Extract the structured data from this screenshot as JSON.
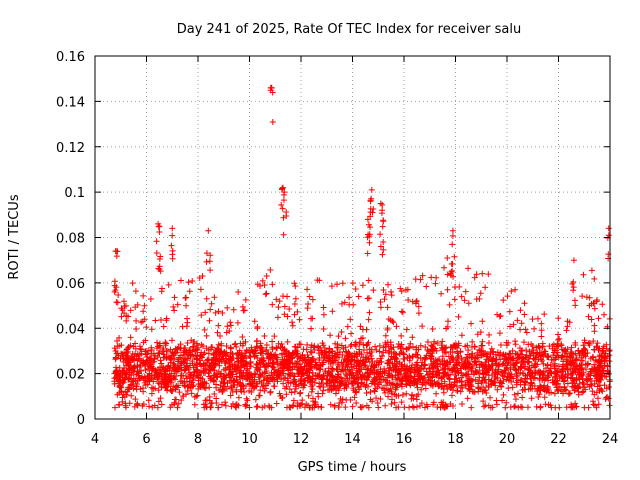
{
  "chart_data": {
    "type": "scatter",
    "title": "Day 241 of 2025, Rate Of TEC Index for receiver salu",
    "xlabel": "GPS time / hours",
    "ylabel": "ROTI / TECUs",
    "xlim": [
      4,
      24
    ],
    "ylim": [
      0,
      0.16
    ],
    "xticks": [
      4,
      6,
      8,
      10,
      12,
      14,
      16,
      18,
      20,
      22,
      24
    ],
    "xtick_labels": [
      "4",
      "6",
      "8",
      "10",
      "12",
      "14",
      "16",
      "18",
      "20",
      "22",
      "24"
    ],
    "yticks": [
      0,
      0.02,
      0.04,
      0.06,
      0.08,
      0.1,
      0.12,
      0.14,
      0.16
    ],
    "ytick_labels": [
      "0",
      "0.02",
      "0.04",
      "0.06",
      "0.08",
      "0.1",
      "0.12",
      "0.14",
      "0.16"
    ],
    "grid": true,
    "marker": "+",
    "color": "#ff0000",
    "data_start_hour": 4.75,
    "data_end_hour": 24.0,
    "typical_band": [
      0.01,
      0.035
    ],
    "series": [
      {
        "name": "ROTI",
        "notable_points": [
          {
            "x": 4.8,
            "y": 0.074
          },
          {
            "x": 6.45,
            "y": 0.086
          },
          {
            "x": 6.5,
            "y": 0.085
          },
          {
            "x": 7.0,
            "y": 0.084
          },
          {
            "x": 8.4,
            "y": 0.083
          },
          {
            "x": 10.85,
            "y": 0.146
          },
          {
            "x": 11.3,
            "y": 0.102
          },
          {
            "x": 11.35,
            "y": 0.1
          },
          {
            "x": 14.6,
            "y": 0.088
          },
          {
            "x": 14.75,
            "y": 0.101
          },
          {
            "x": 14.7,
            "y": 0.096
          },
          {
            "x": 15.1,
            "y": 0.095
          },
          {
            "x": 15.15,
            "y": 0.092
          },
          {
            "x": 17.9,
            "y": 0.083
          },
          {
            "x": 22.6,
            "y": 0.07
          },
          {
            "x": 23.95,
            "y": 0.084
          }
        ],
        "envelope_hourly": [
          {
            "x": 5,
            "y": 0.06
          },
          {
            "x": 6,
            "y": 0.055
          },
          {
            "x": 7,
            "y": 0.06
          },
          {
            "x": 8,
            "y": 0.065
          },
          {
            "x": 9,
            "y": 0.045
          },
          {
            "x": 10,
            "y": 0.06
          },
          {
            "x": 11,
            "y": 0.065
          },
          {
            "x": 12,
            "y": 0.055
          },
          {
            "x": 13,
            "y": 0.062
          },
          {
            "x": 14,
            "y": 0.06
          },
          {
            "x": 15,
            "y": 0.06
          },
          {
            "x": 16,
            "y": 0.055
          },
          {
            "x": 17,
            "y": 0.065
          },
          {
            "x": 18,
            "y": 0.07
          },
          {
            "x": 19,
            "y": 0.062
          },
          {
            "x": 20,
            "y": 0.06
          },
          {
            "x": 21,
            "y": 0.045
          },
          {
            "x": 22,
            "y": 0.045
          },
          {
            "x": 23,
            "y": 0.065
          },
          {
            "x": 24,
            "y": 0.06
          }
        ]
      }
    ]
  }
}
